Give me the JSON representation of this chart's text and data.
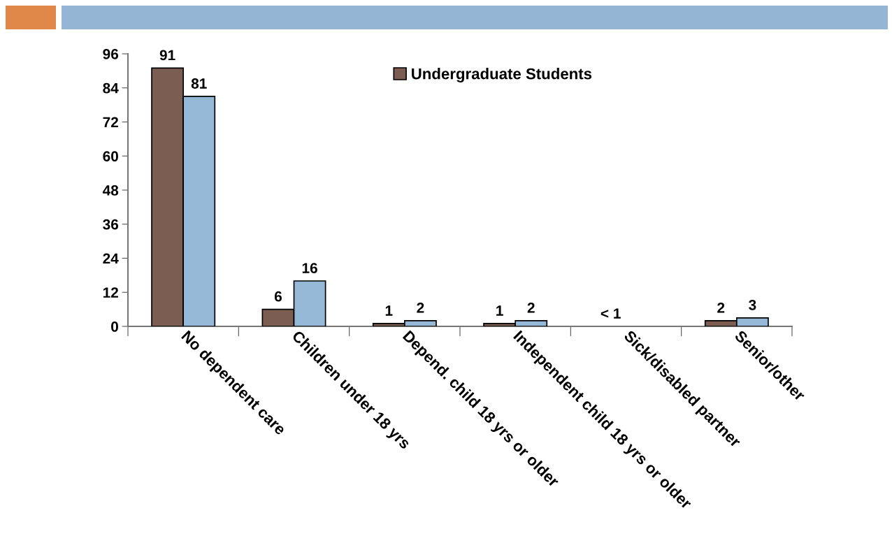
{
  "chart_data": {
    "type": "bar",
    "categories": [
      "No dependent care",
      "Children under 18 yrs",
      "Depend. child 18 yrs or older",
      "Independent child 18 yrs or older",
      "Sick/disabled partner",
      "Senior/other"
    ],
    "series": [
      {
        "name": "Undergraduate Students",
        "color": "#7b5d52",
        "values": [
          91,
          6,
          1,
          1,
          null,
          2
        ],
        "value_labels": [
          "91",
          "6",
          "1",
          "1",
          null,
          "2"
        ]
      },
      {
        "color": "#95b8d6",
        "values": [
          81,
          16,
          2,
          2,
          null,
          3
        ],
        "value_labels": [
          "81",
          "16",
          "2",
          "2",
          null,
          "3"
        ]
      }
    ],
    "annotations": [
      "< 1"
    ],
    "ylim": [
      0,
      96
    ],
    "yticks": [
      0,
      12,
      24,
      36,
      48,
      60,
      72,
      84,
      96
    ],
    "grid": false,
    "legend": "top right"
  }
}
